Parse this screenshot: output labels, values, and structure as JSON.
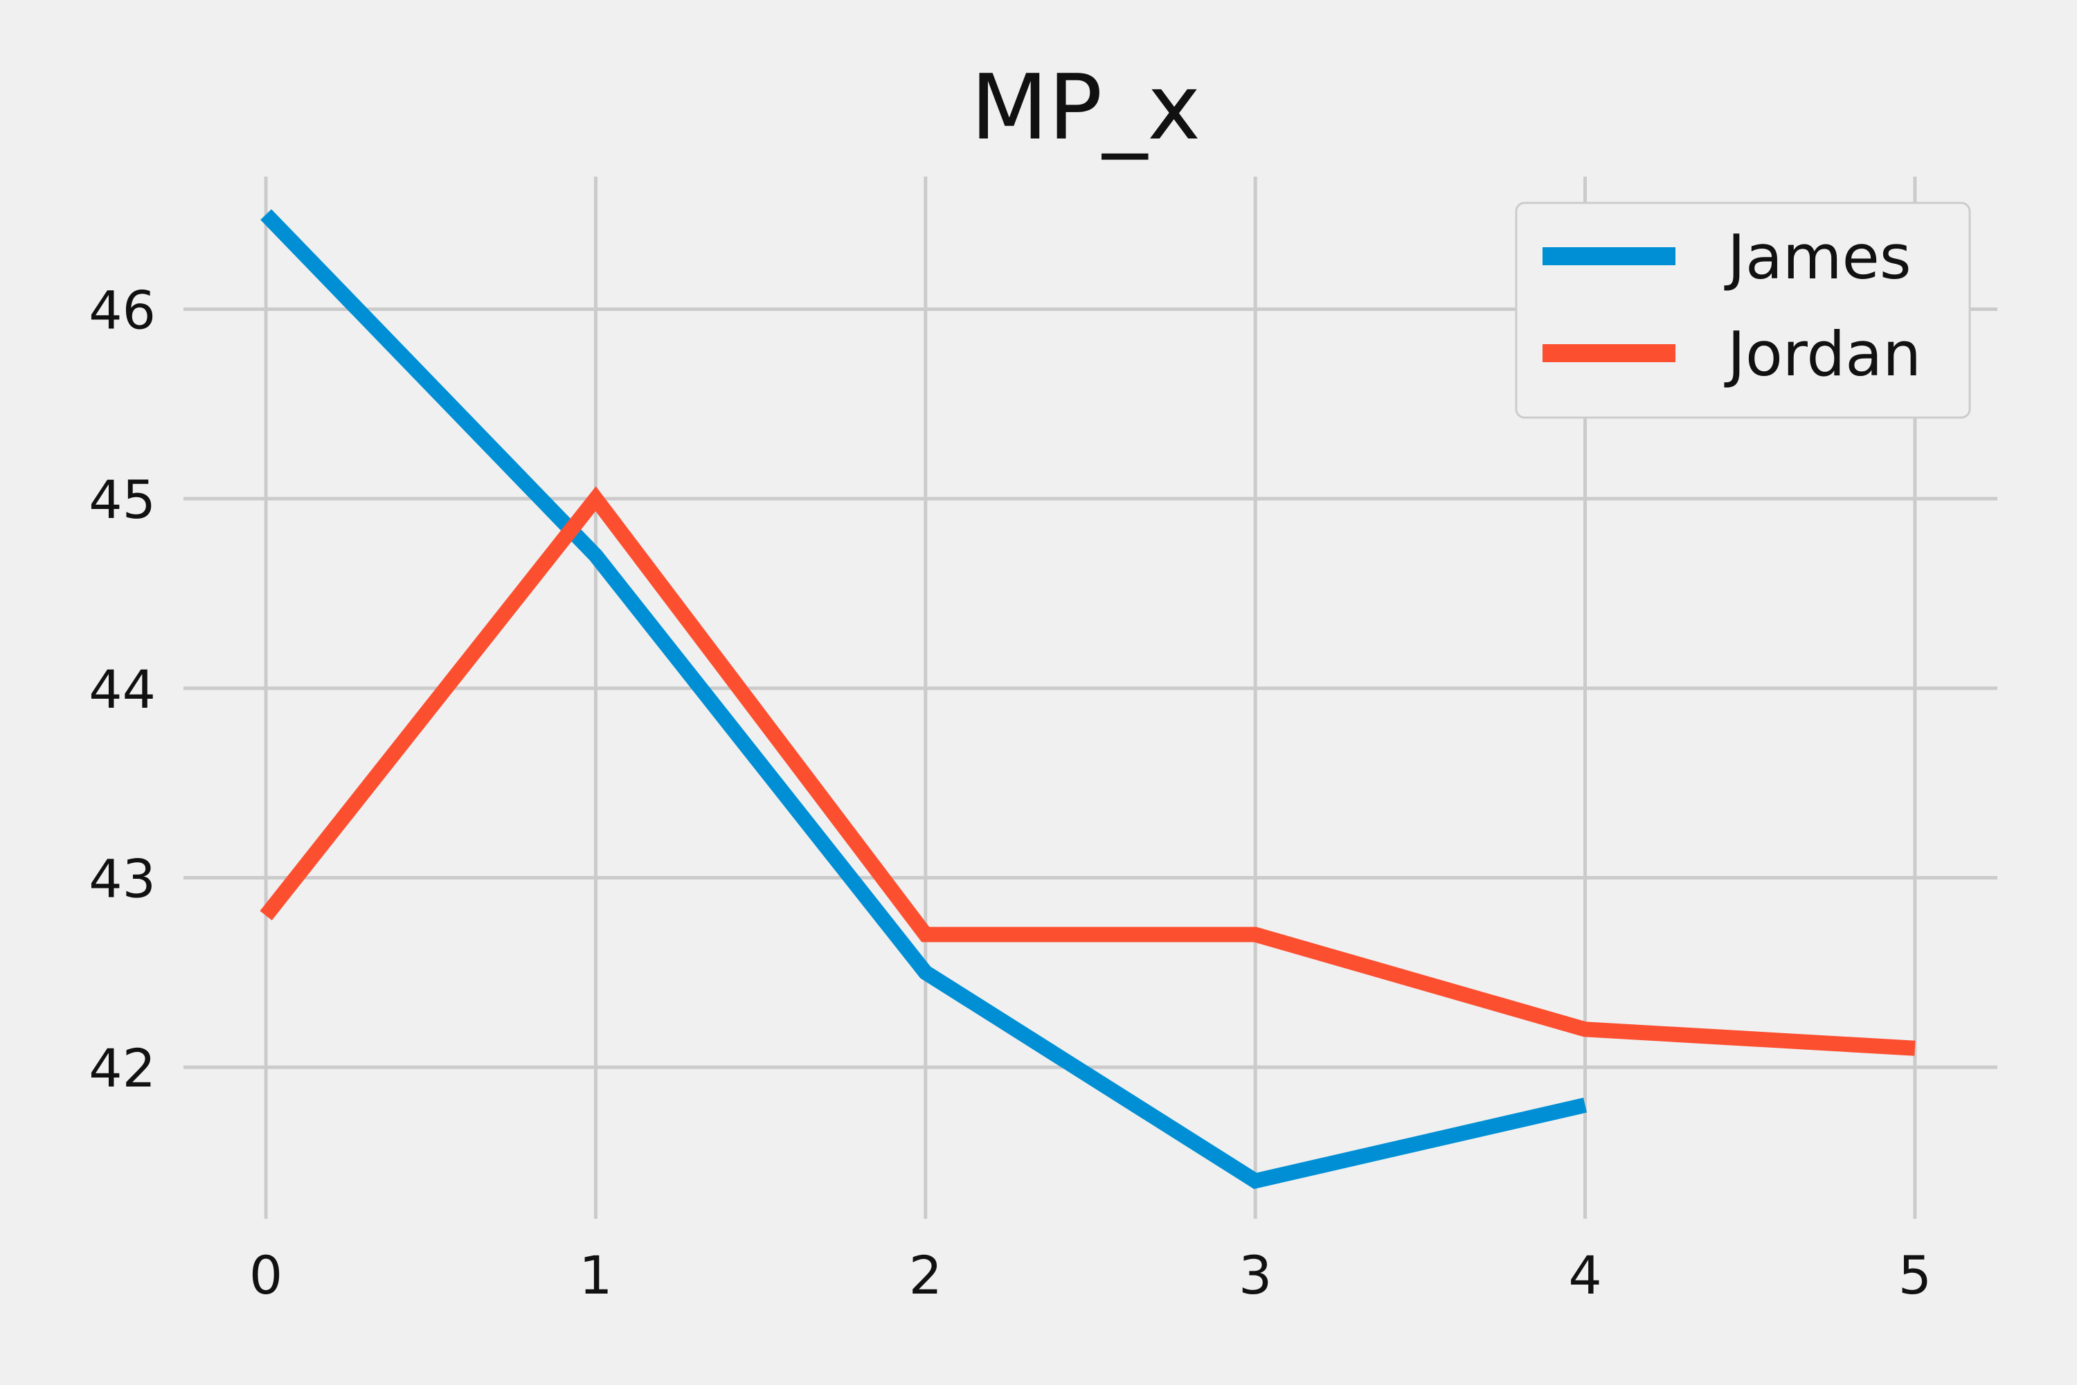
{
  "chart_data": {
    "type": "line",
    "title": "MP_x",
    "xlabel": "",
    "ylabel": "",
    "xlim": [
      -0.25,
      5.25
    ],
    "ylim": [
      41.2,
      46.7
    ],
    "x_ticks": [
      0,
      1,
      2,
      3,
      4,
      5
    ],
    "y_ticks": [
      42,
      43,
      44,
      45,
      46
    ],
    "grid": true,
    "legend_position": "top-right",
    "series": [
      {
        "name": "James",
        "color": "#008fd5",
        "x": [
          0,
          1,
          2,
          3,
          4
        ],
        "values": [
          46.5,
          44.7,
          42.5,
          41.4,
          41.8
        ]
      },
      {
        "name": "Jordan",
        "color": "#fc4f30",
        "x": [
          0,
          1,
          2,
          3,
          4,
          5
        ],
        "values": [
          42.8,
          45.0,
          42.7,
          42.7,
          42.2,
          42.1
        ]
      }
    ]
  }
}
